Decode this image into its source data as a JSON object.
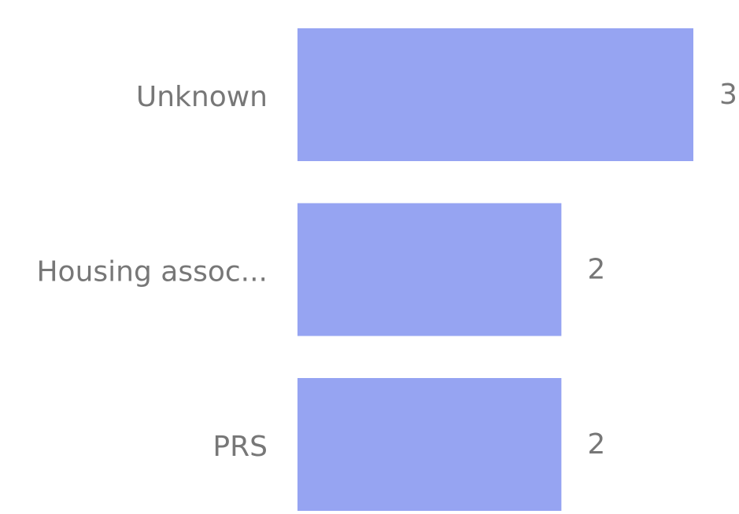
{
  "chart_data": {
    "type": "hbar",
    "categories": [
      "Unknown",
      "Housing assoc...",
      "PRS"
    ],
    "values": [
      3,
      2,
      2
    ],
    "color": "#96a4f2",
    "value_labels_shown": true
  }
}
